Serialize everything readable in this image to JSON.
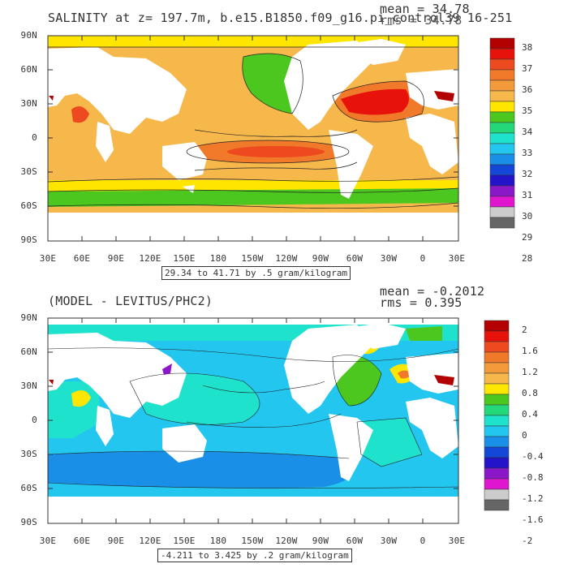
{
  "panel1": {
    "title": "SALINITY at z= 197.7m, b.e15.B1850.f09_g16.pi_control39 16-251",
    "mean_text": "mean = 34.78",
    "rms_text": "rms = 34.78",
    "range_text": "29.34 to 41.71 by .5 gram/kilogram",
    "colorbar_labels": [
      "38",
      "37",
      "36",
      "35",
      "34",
      "33",
      "32",
      "31",
      "30",
      "29",
      "28"
    ],
    "colorbar_colors": [
      "#b30000",
      "#e8120c",
      "#ee4a1f",
      "#f07a2a",
      "#f39b3b",
      "#f6b74b",
      "#fee600",
      "#4cc71f",
      "#24d87a",
      "#1fe2cc",
      "#22c6ee",
      "#1a8fe8",
      "#1446d7",
      "#2314c9",
      "#8a17c8",
      "#e016ce",
      "#cccccc",
      "#666666"
    ]
  },
  "panel2": {
    "title": "(MODEL - LEVITUS/PHC2)",
    "mean_text": "mean = -0.2012",
    "rms_text": "rms = 0.395",
    "range_text": "-4.211 to 3.425 by .2 gram/kilogram",
    "colorbar_labels": [
      "2",
      "1.6",
      "1.2",
      "0.8",
      "0.4",
      "0",
      "-0.4",
      "-0.8",
      "-1.2",
      "-1.6",
      "-2"
    ],
    "colorbar_colors": [
      "#b30000",
      "#e8120c",
      "#ee4a1f",
      "#f07a2a",
      "#f39b3b",
      "#f6b74b",
      "#fee600",
      "#4cc71f",
      "#24d87a",
      "#1fe2cc",
      "#22c6ee",
      "#1a8fe8",
      "#1446d7",
      "#2314c9",
      "#8a17c8",
      "#e016ce",
      "#cccccc",
      "#666666"
    ]
  },
  "lat_labels": [
    "90N",
    "60N",
    "30N",
    "0",
    "30S",
    "60S",
    "90S"
  ],
  "lon_labels": [
    "30E",
    "60E",
    "90E",
    "120E",
    "150E",
    "180",
    "150W",
    "120W",
    "90W",
    "60W",
    "30W",
    "0",
    "30E"
  ]
}
